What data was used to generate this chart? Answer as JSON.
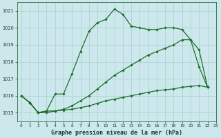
{
  "title": "Graphe pression niveau de la mer (hPa)",
  "background_color": "#cce8ec",
  "grid_color": "#aacccc",
  "line_color": "#1a6e2a",
  "xlim": [
    -0.5,
    23
  ],
  "ylim": [
    1014.5,
    1021.5
  ],
  "yticks": [
    1015,
    1016,
    1017,
    1018,
    1019,
    1020,
    1021
  ],
  "xticks": [
    0,
    1,
    2,
    3,
    4,
    5,
    6,
    7,
    8,
    9,
    10,
    11,
    12,
    13,
    14,
    15,
    16,
    17,
    18,
    19,
    20,
    21,
    22,
    23
  ],
  "series1_y": [
    1016.0,
    1015.6,
    1015.0,
    1015.1,
    1016.1,
    1016.1,
    1017.3,
    1018.6,
    1019.8,
    1020.3,
    1020.5,
    1021.1,
    1020.8,
    1020.1,
    1020.0,
    1019.9,
    1019.9,
    1020.0,
    1020.0,
    1019.9,
    1019.3,
    1017.7,
    1016.5,
    null
  ],
  "series2_y": [
    1016.0,
    1015.6,
    1015.0,
    1015.1,
    1015.1,
    1015.2,
    1015.4,
    1015.7,
    1016.0,
    1016.4,
    1016.8,
    1017.2,
    1017.5,
    1017.8,
    1018.1,
    1018.4,
    1018.6,
    1018.8,
    1019.0,
    1019.3,
    1019.3,
    1018.7,
    1016.5,
    null
  ],
  "series3_y": [
    1016.0,
    1015.6,
    1015.0,
    1015.0,
    1015.1,
    1015.15,
    1015.2,
    1015.3,
    1015.4,
    1015.55,
    1015.7,
    1015.8,
    1015.9,
    1016.0,
    1016.1,
    1016.2,
    1016.3,
    1016.35,
    1016.4,
    1016.5,
    1016.55,
    1016.6,
    1016.5,
    null
  ]
}
